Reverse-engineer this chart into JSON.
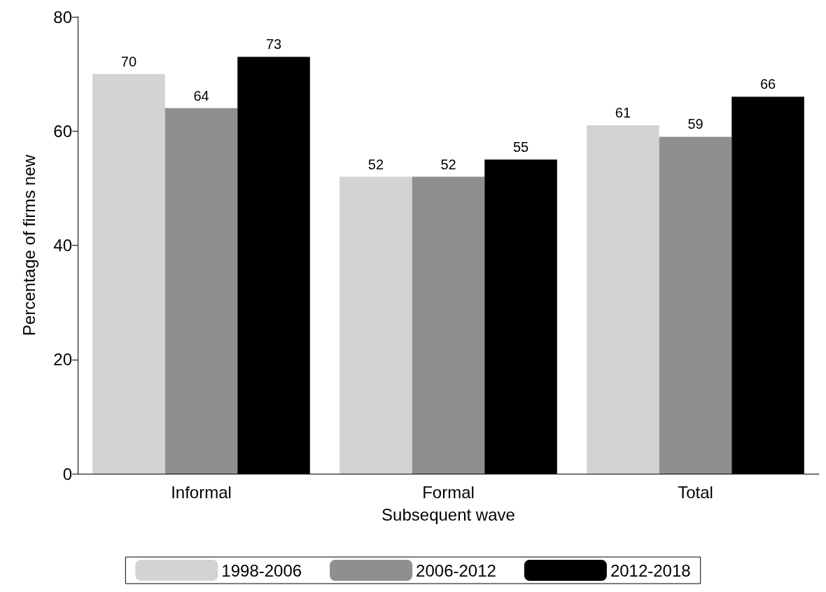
{
  "chart_data": {
    "type": "bar",
    "xlabel": "Subsequent wave",
    "ylabel": "Percentage of firms new",
    "categories": [
      "Informal",
      "Formal",
      "Total"
    ],
    "series": [
      {
        "name": "1998-2006",
        "color": "#d3d3d3",
        "values": [
          70,
          52,
          61
        ]
      },
      {
        "name": "2006-2012",
        "color": "#8f8f8f",
        "values": [
          64,
          52,
          59
        ]
      },
      {
        "name": "2012-2018",
        "color": "#000000",
        "values": [
          73,
          55,
          66
        ]
      }
    ],
    "ylim": [
      0,
      80
    ],
    "yticks": [
      0,
      20,
      40,
      60,
      80
    ],
    "grid": false,
    "legend": "bottom",
    "data_labels": true
  }
}
